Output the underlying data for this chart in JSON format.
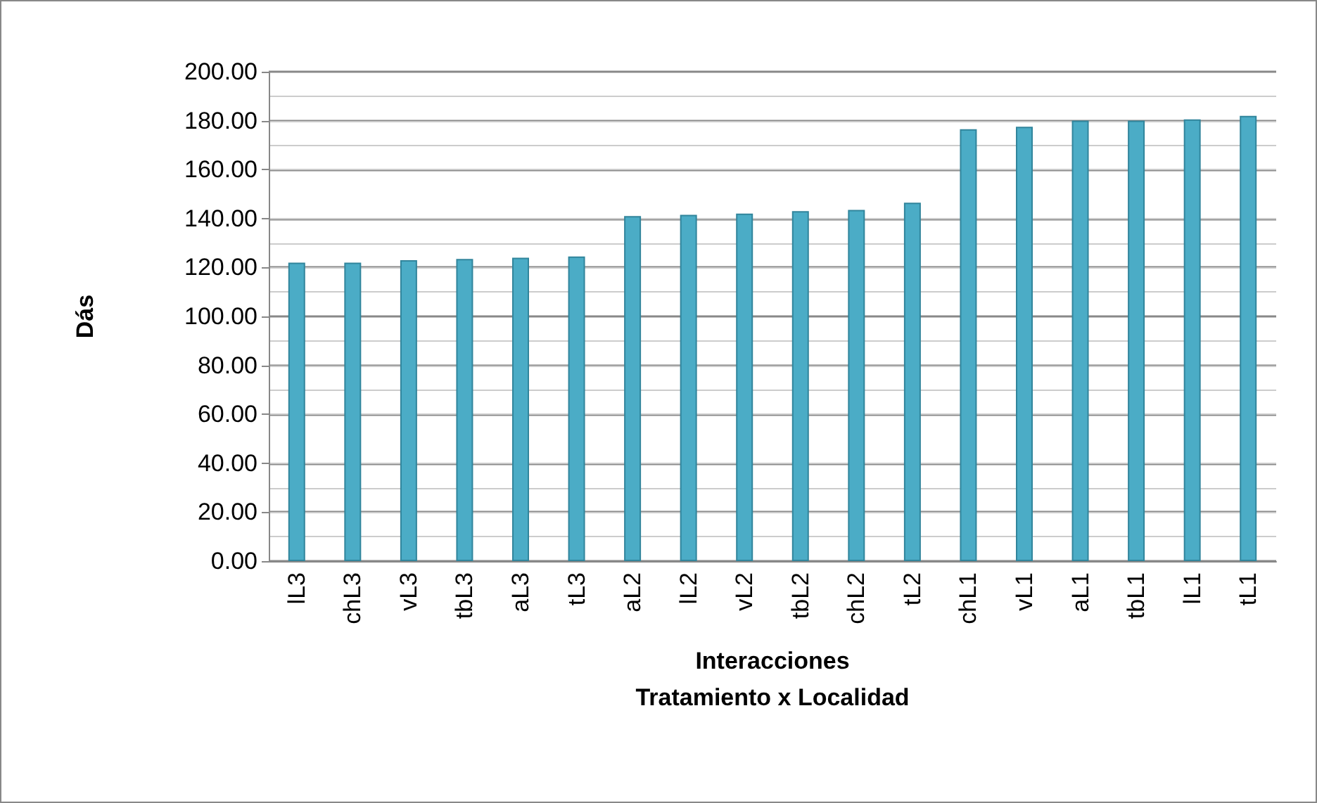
{
  "chart_data": {
    "type": "bar",
    "ylabel": "Dás",
    "xlabel": "Interacciones\nTratamiento x Localidad",
    "categories": [
      "lL3",
      "chL3",
      "vL3",
      "tbL3",
      "aL3",
      "tL3",
      "aL2",
      "lL2",
      "vL2",
      "tbL2",
      "chL2",
      "tL2",
      "chL1",
      "vL1",
      "aL1",
      "tbL1",
      "lL1",
      "tL1"
    ],
    "values": [
      122,
      122,
      123,
      123.5,
      124,
      124.5,
      141,
      141.5,
      142,
      143,
      143.5,
      146.5,
      176.5,
      177.5,
      180,
      180,
      180.5,
      182
    ],
    "color": "#4bacc6",
    "ylim": [
      0,
      200
    ],
    "yticks": [
      {
        "value": 0,
        "label": "0.00"
      },
      {
        "value": 20,
        "label": "20.00"
      },
      {
        "value": 40,
        "label": "40.00"
      },
      {
        "value": 60,
        "label": "60.00"
      },
      {
        "value": 80,
        "label": "80.00"
      },
      {
        "value": 100,
        "label": "100.00"
      },
      {
        "value": 120,
        "label": "120.00"
      },
      {
        "value": 140,
        "label": "140.00"
      },
      {
        "value": 160,
        "label": "160.00"
      },
      {
        "value": 180,
        "label": "180.00"
      },
      {
        "value": 200,
        "label": "200.00"
      }
    ],
    "grid": true
  }
}
